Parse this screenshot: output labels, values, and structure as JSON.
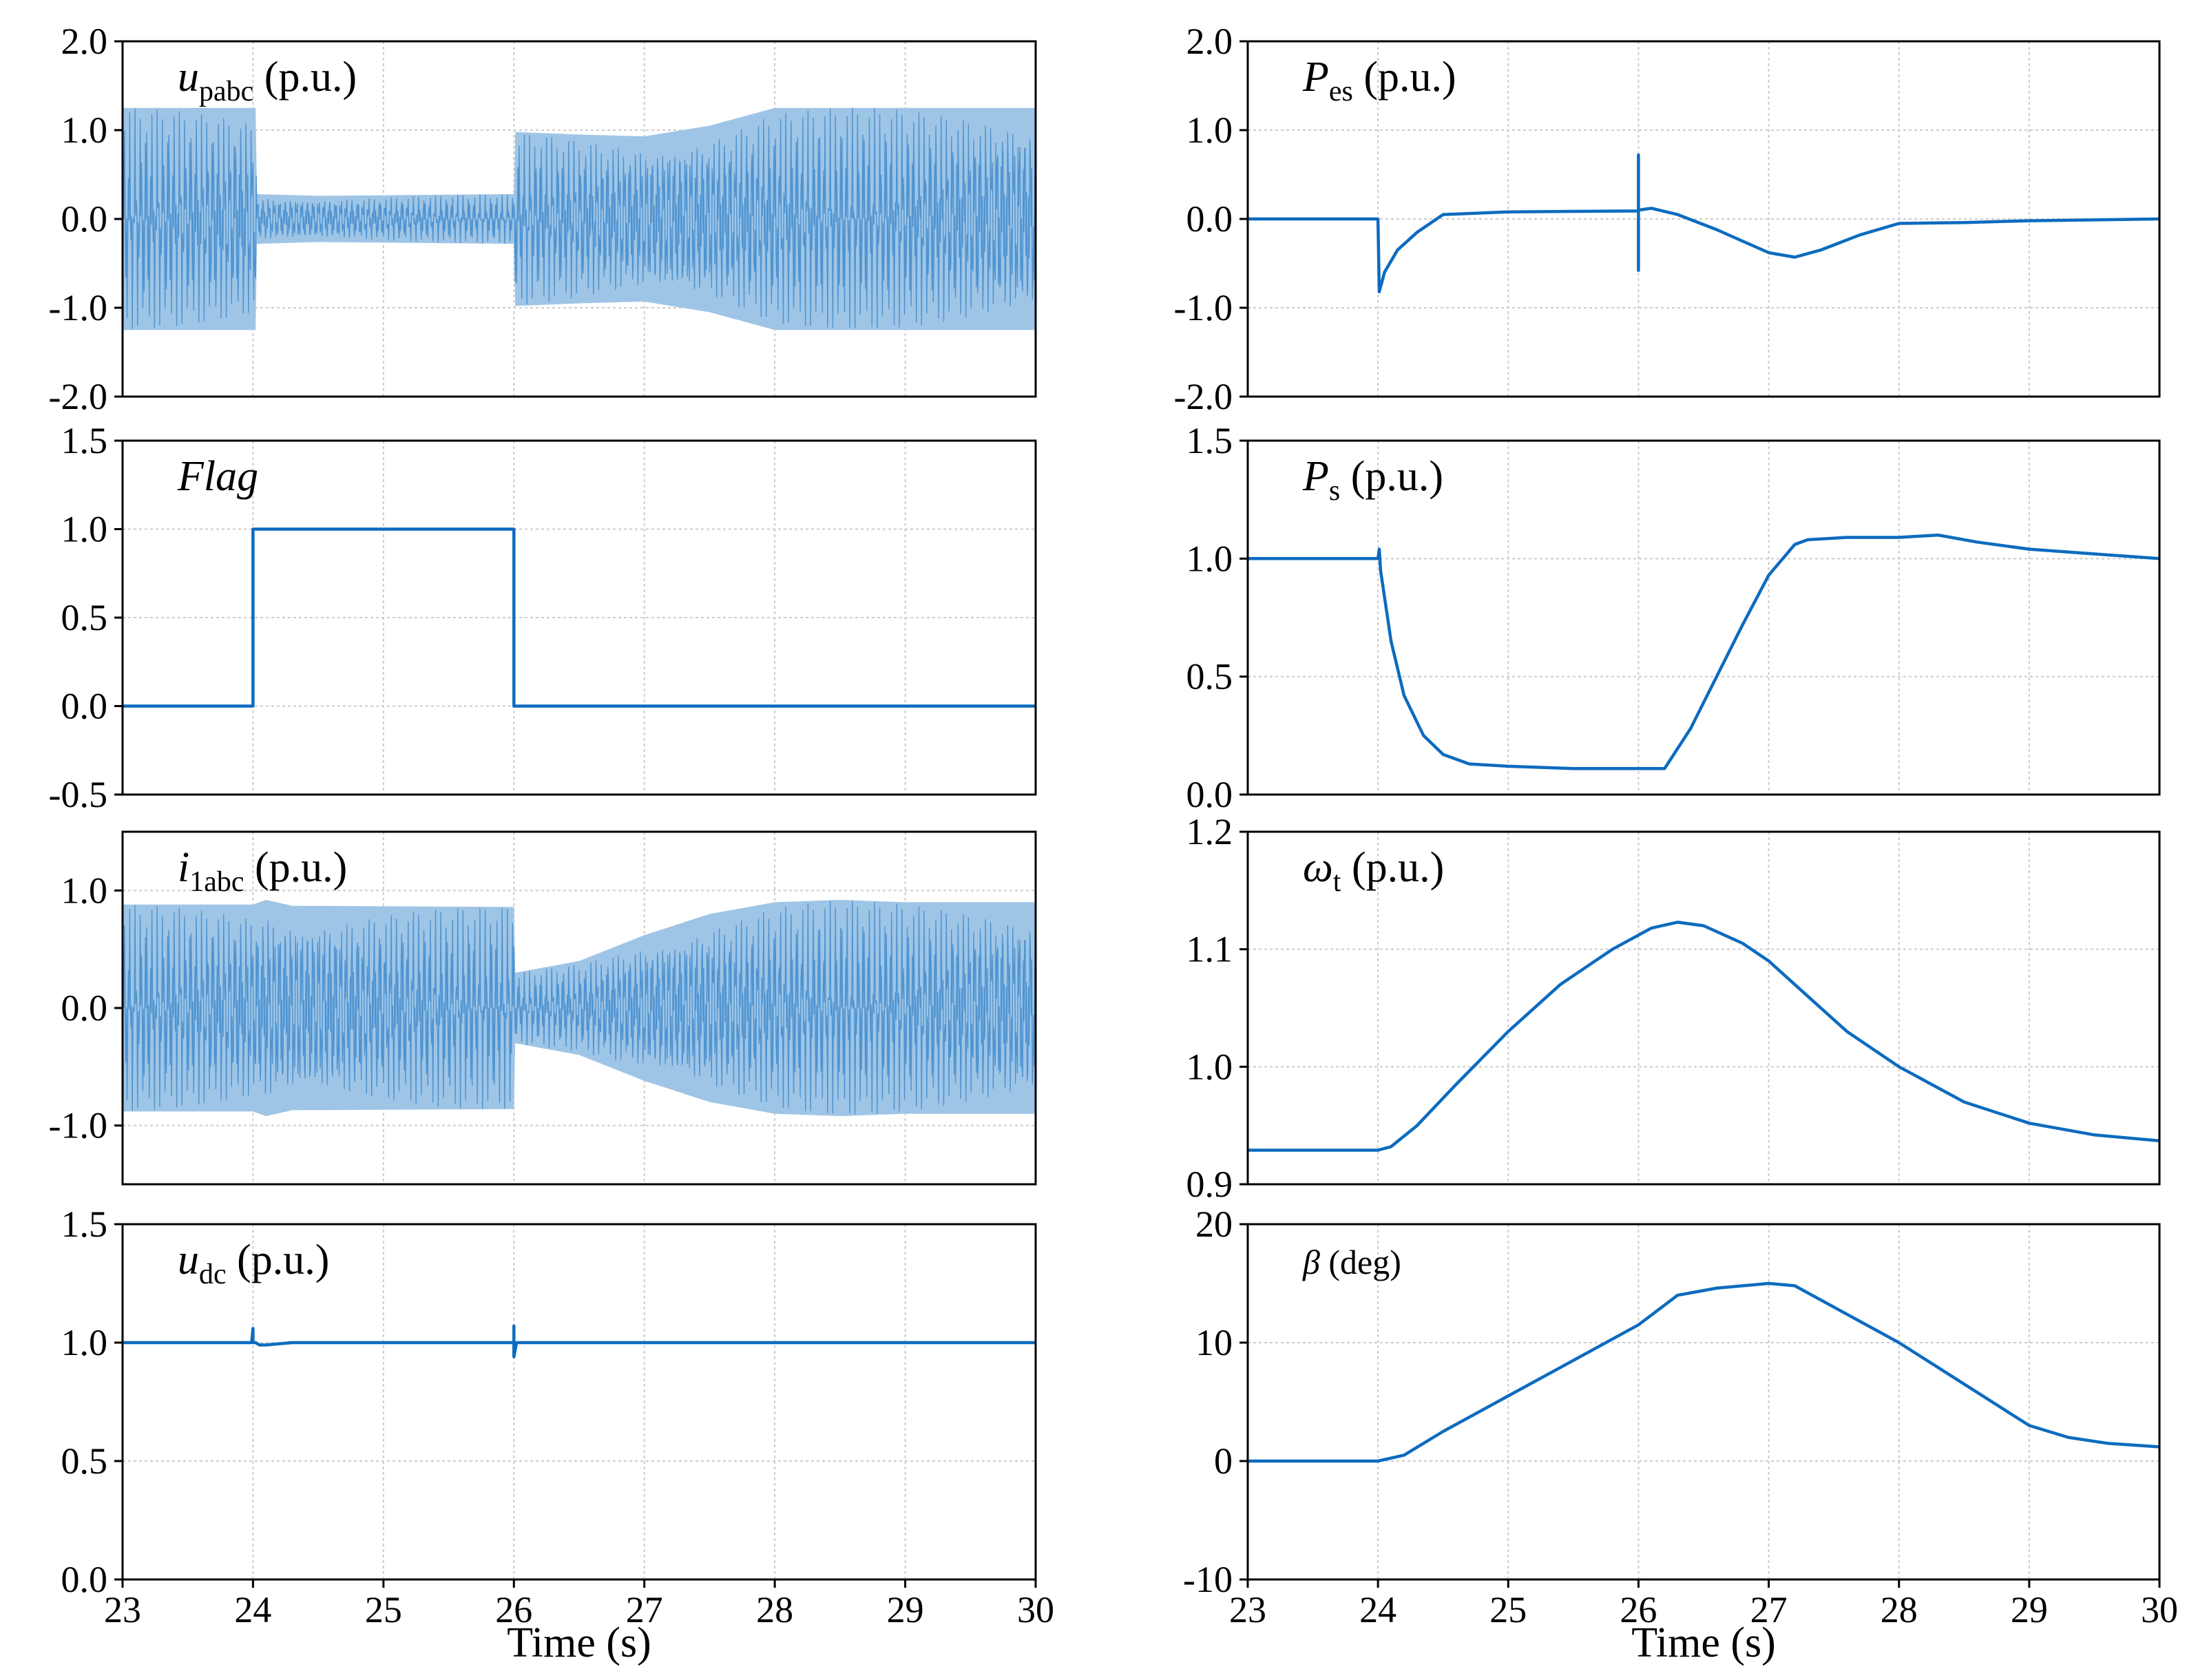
{
  "colors": {
    "line": "#0c6bbf",
    "fill": "#9fc5e6",
    "grid": "#cccccc",
    "axis": "#000000"
  },
  "chart_data": [
    {
      "id": "upabc",
      "column": "left",
      "row": 0,
      "type": "area",
      "label": {
        "main": "u",
        "sub": "pabc",
        "unit": " (p.u.)",
        "italic": true
      },
      "ylim": [
        -2.0,
        2.0
      ],
      "yticks": [
        "2.0",
        "1.0",
        "0.0",
        "-1.0",
        "-2.0"
      ],
      "ytick_values": [
        2,
        1,
        0,
        -1,
        -2
      ],
      "xlim": [
        23,
        30
      ],
      "envelope": {
        "x": [
          23,
          24.02,
          24.03,
          24.5,
          26.0,
          26.01,
          26.5,
          27.0,
          27.5,
          28.0,
          29.0,
          30.0
        ],
        "amp": [
          1.25,
          1.25,
          0.28,
          0.26,
          0.28,
          0.98,
          0.95,
          0.93,
          1.05,
          1.25,
          1.25,
          1.25
        ]
      }
    },
    {
      "id": "flag",
      "column": "left",
      "row": 1,
      "type": "line",
      "label": {
        "main": "Flag",
        "sub": "",
        "unit": "",
        "italic": true
      },
      "ylim": [
        -0.5,
        1.5
      ],
      "yticks": [
        "1.5",
        "1.0",
        "0.5",
        "0.0",
        "-0.5"
      ],
      "ytick_values": [
        1.5,
        1.0,
        0.5,
        0.0,
        -0.5
      ],
      "xlim": [
        23,
        30
      ],
      "x": [
        23,
        24.0,
        24.0,
        26.0,
        26.0,
        30
      ],
      "y": [
        0,
        0,
        1,
        1,
        0,
        0
      ]
    },
    {
      "id": "i1abc",
      "column": "left",
      "row": 2,
      "type": "area",
      "label": {
        "main": "i",
        "sub": "1abc",
        "unit": " (p.u.)",
        "italic": true
      },
      "ylim": [
        -1.5,
        1.5
      ],
      "yticks": [
        "1.0",
        "0.0",
        "-1.0"
      ],
      "ytick_values": [
        1,
        0,
        -1
      ],
      "xlim": [
        23,
        30
      ],
      "envelope": {
        "x": [
          23,
          24.0,
          24.1,
          24.3,
          26.0,
          26.01,
          26.5,
          27.0,
          27.5,
          28.0,
          28.5,
          29.0,
          30.0
        ],
        "amp": [
          0.88,
          0.88,
          0.92,
          0.87,
          0.86,
          0.3,
          0.4,
          0.62,
          0.8,
          0.9,
          0.92,
          0.9,
          0.9
        ]
      }
    },
    {
      "id": "udc",
      "column": "left",
      "row": 3,
      "type": "line",
      "label": {
        "main": "u",
        "sub": "dc",
        "unit": " (p.u.)",
        "italic": true
      },
      "ylim": [
        0.0,
        1.5
      ],
      "yticks": [
        "1.5",
        "1.0",
        "0.5",
        "0.0"
      ],
      "ytick_values": [
        1.5,
        1.0,
        0.5,
        0.0
      ],
      "xlim": [
        23,
        30
      ],
      "x": [
        23,
        23.99,
        24.0,
        24.0,
        24.02,
        24.05,
        24.1,
        24.3,
        26.0,
        26.0,
        26.0,
        26.02,
        30
      ],
      "y": [
        1.0,
        1.0,
        1.06,
        1.0,
        1.0,
        0.99,
        0.99,
        1.0,
        1.0,
        1.07,
        0.94,
        1.0,
        1.0
      ],
      "xticks": [
        "23",
        "24",
        "25",
        "26",
        "27",
        "28",
        "29",
        "30"
      ],
      "xlabel": "Time (s)"
    },
    {
      "id": "pes",
      "column": "right",
      "row": 0,
      "type": "line",
      "label": {
        "main": "P",
        "sub": "es",
        "unit": " (p.u.)",
        "italic": true
      },
      "ylim": [
        -2.0,
        2.0
      ],
      "yticks": [
        "2.0",
        "1.0",
        "0.0",
        "-1.0",
        "-2.0"
      ],
      "ytick_values": [
        2,
        1,
        0,
        -1,
        -2
      ],
      "xlim": [
        23,
        30
      ],
      "x": [
        23,
        24.0,
        24.01,
        24.05,
        24.15,
        24.3,
        24.5,
        25.0,
        26.0,
        26.0,
        26.0,
        26.0,
        26.1,
        26.3,
        26.6,
        27.0,
        27.2,
        27.4,
        27.7,
        28.0,
        28.5,
        29.0,
        30.0
      ],
      "y": [
        0,
        0,
        -0.82,
        -0.6,
        -0.35,
        -0.15,
        0.05,
        0.08,
        0.09,
        0.72,
        -0.58,
        0.1,
        0.12,
        0.05,
        -0.12,
        -0.38,
        -0.43,
        -0.35,
        -0.18,
        -0.05,
        -0.04,
        -0.02,
        0.0
      ]
    },
    {
      "id": "ps",
      "column": "right",
      "row": 1,
      "type": "line",
      "label": {
        "main": "P",
        "sub": "s",
        "unit": " (p.u.)",
        "italic": true
      },
      "ylim": [
        0.0,
        1.5
      ],
      "yticks": [
        "1.5",
        "1.0",
        "0.5",
        "0.0"
      ],
      "ytick_values": [
        1.5,
        1.0,
        0.5,
        0.0
      ],
      "xlim": [
        23,
        30
      ],
      "x": [
        23,
        24.0,
        24.01,
        24.02,
        24.1,
        24.2,
        24.35,
        24.5,
        24.7,
        25.0,
        25.5,
        26.0,
        26.2,
        26.4,
        26.6,
        26.8,
        27.0,
        27.2,
        27.3,
        27.6,
        28.0,
        28.3,
        28.6,
        29.0,
        29.5,
        30.0
      ],
      "y": [
        1.0,
        1.0,
        1.04,
        0.95,
        0.65,
        0.42,
        0.25,
        0.17,
        0.13,
        0.12,
        0.11,
        0.11,
        0.11,
        0.28,
        0.5,
        0.72,
        0.93,
        1.06,
        1.08,
        1.09,
        1.09,
        1.1,
        1.07,
        1.04,
        1.02,
        1.0
      ]
    },
    {
      "id": "wt",
      "column": "right",
      "row": 2,
      "type": "line",
      "label": {
        "main": "ω",
        "sub": "t",
        "unit": " (p.u.)",
        "italic": true
      },
      "ylim": [
        0.9,
        1.2
      ],
      "yticks": [
        "1.2",
        "1.1",
        "1.0",
        "0.9"
      ],
      "ytick_values": [
        1.2,
        1.1,
        1.0,
        0.9
      ],
      "xlim": [
        23,
        30
      ],
      "x": [
        23,
        24.0,
        24.1,
        24.3,
        24.6,
        25.0,
        25.4,
        25.8,
        26.1,
        26.3,
        26.5,
        26.8,
        27.0,
        27.3,
        27.6,
        28.0,
        28.5,
        29.0,
        29.5,
        30.0
      ],
      "y": [
        0.929,
        0.929,
        0.932,
        0.95,
        0.985,
        1.03,
        1.07,
        1.1,
        1.118,
        1.123,
        1.12,
        1.105,
        1.09,
        1.06,
        1.03,
        1.0,
        0.97,
        0.952,
        0.942,
        0.937
      ]
    },
    {
      "id": "beta",
      "column": "right",
      "row": 3,
      "type": "line",
      "label": {
        "main": "β",
        "sub": "",
        "unit": " (deg)",
        "italic": true,
        "small": true
      },
      "ylim": [
        -10,
        20
      ],
      "yticks": [
        "20",
        "10",
        "0",
        "-10"
      ],
      "ytick_values": [
        20,
        10,
        0,
        -10
      ],
      "xlim": [
        23,
        30
      ],
      "x": [
        23,
        24.0,
        24.2,
        24.5,
        25.0,
        25.5,
        26.0,
        26.3,
        26.6,
        27.0,
        27.2,
        27.5,
        28.0,
        28.5,
        29.0,
        29.3,
        29.6,
        30.0
      ],
      "y": [
        0,
        0,
        0.5,
        2.5,
        5.5,
        8.5,
        11.5,
        14.0,
        14.6,
        15.0,
        14.8,
        13.0,
        10.0,
        6.5,
        3.0,
        2.0,
        1.5,
        1.2
      ],
      "xticks": [
        "23",
        "24",
        "25",
        "26",
        "27",
        "28",
        "29",
        "30"
      ],
      "xlabel": "Time (s)"
    }
  ]
}
